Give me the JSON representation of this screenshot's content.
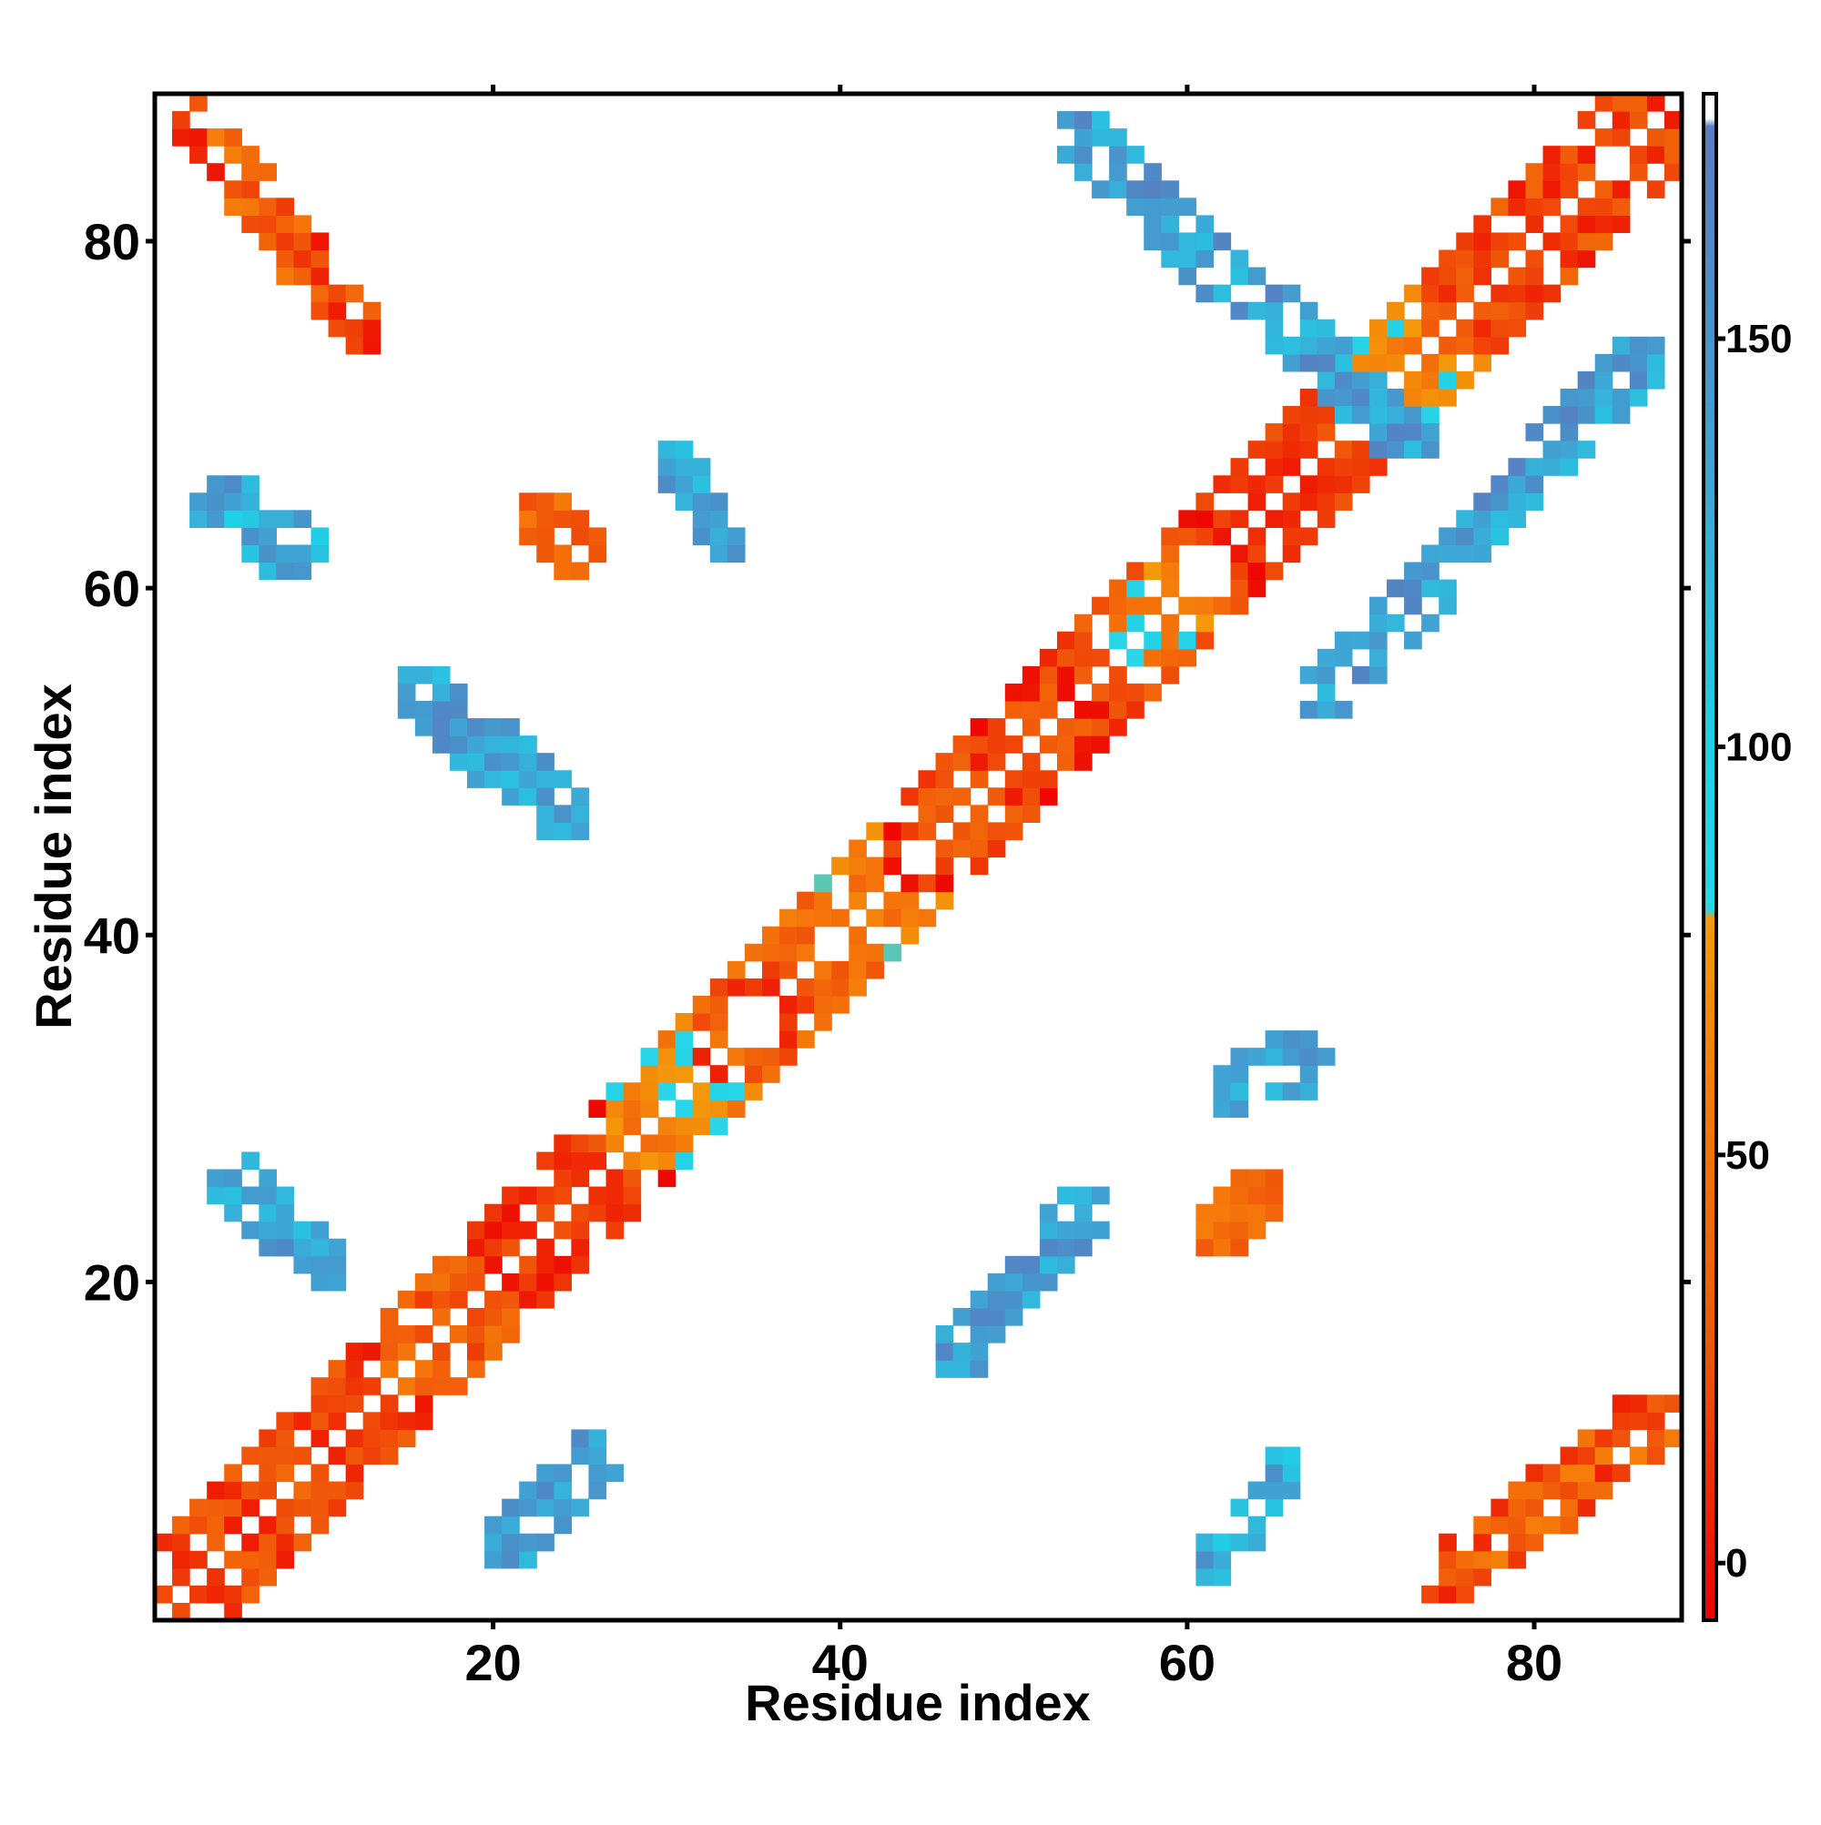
{
  "chart_data": {
    "type": "heatmap",
    "title": "",
    "xlabel": "Residue index",
    "ylabel": "Residue index",
    "xlim": [
      0.5,
      88.5
    ],
    "ylim": [
      0.5,
      88.5
    ],
    "x_ticks": [
      20,
      40,
      60,
      80
    ],
    "y_ticks": [
      20,
      40,
      60,
      80
    ],
    "colorbar": {
      "ticks": [
        0,
        50,
        100,
        150
      ],
      "range": [
        -7,
        180
      ],
      "stops": [
        {
          "value": -7,
          "color": "#ee0000"
        },
        {
          "value": 25,
          "color": "#f0550a"
        },
        {
          "value": 55,
          "color": "#f5780a"
        },
        {
          "value": 79,
          "color": "#f49a0a"
        },
        {
          "value": 80,
          "color": "#2ad6e8"
        },
        {
          "value": 100,
          "color": "#1fd0e6"
        },
        {
          "value": 130,
          "color": "#3da8d6"
        },
        {
          "value": 155,
          "color": "#4a90c8"
        },
        {
          "value": 176,
          "color": "#5a7cc0"
        },
        {
          "value": 177,
          "color": "#ffffff"
        },
        {
          "value": 180,
          "color": "#ffffff"
        }
      ]
    },
    "grid": false,
    "legend": "colorbar-right",
    "diagonal_helix_segments": [
      {
        "from": 1,
        "to": 13,
        "lo": 0,
        "hi": 45
      },
      {
        "from": 14,
        "to": 18,
        "lo": 10,
        "hi": 60
      },
      {
        "from": 19,
        "to": 26,
        "lo": -5,
        "hi": 30
      },
      {
        "from": 27,
        "to": 31,
        "lo": 40,
        "hi": 90
      },
      {
        "from": 32,
        "to": 38,
        "lo": 5,
        "hi": 60
      },
      {
        "from": 39,
        "to": 42,
        "lo": 40,
        "hi": 80
      },
      {
        "from": 43,
        "to": 55,
        "lo": -5,
        "hi": 40
      },
      {
        "from": 56,
        "to": 59,
        "lo": 20,
        "hi": 100
      },
      {
        "from": 60,
        "to": 69,
        "lo": -5,
        "hi": 30
      },
      {
        "from": 70,
        "to": 73,
        "lo": 40,
        "hi": 95
      },
      {
        "from": 74,
        "to": 88,
        "lo": -5,
        "hi": 40
      }
    ],
    "contact_blocks": [
      {
        "x": [
          2,
          13
        ],
        "y": [
          74,
          88
        ],
        "lo": 0,
        "hi": 60
      },
      {
        "x": [
          74,
          88
        ],
        "y": [
          2,
          13
        ],
        "lo": 0,
        "hi": 60
      },
      {
        "x": [
          53,
          74
        ],
        "y": [
          67,
          87
        ],
        "lo": 110,
        "hi": 170
      },
      {
        "x": [
          67,
          87
        ],
        "y": [
          53,
          74
        ],
        "lo": 110,
        "hi": 170
      },
      {
        "x": [
          15,
          25
        ],
        "y": [
          46,
          55
        ],
        "lo": 110,
        "hi": 165
      },
      {
        "x": [
          46,
          55
        ],
        "y": [
          15,
          25
        ],
        "lo": 110,
        "hi": 165
      },
      {
        "x": [
          3,
          10
        ],
        "y": [
          61,
          66
        ],
        "lo": 100,
        "hi": 160
      },
      {
        "x": [
          61,
          66
        ],
        "y": [
          3,
          10
        ],
        "lo": 100,
        "hi": 160
      },
      {
        "x": [
          4,
          11
        ],
        "y": [
          20,
          27
        ],
        "lo": 110,
        "hi": 165
      },
      {
        "x": [
          20,
          27
        ],
        "y": [
          4,
          11
        ],
        "lo": 110,
        "hi": 165
      },
      {
        "x": [
          30,
          34
        ],
        "y": [
          62,
          68
        ],
        "lo": 110,
        "hi": 160
      },
      {
        "x": [
          62,
          68
        ],
        "y": [
          30,
          34
        ],
        "lo": 110,
        "hi": 160
      },
      {
        "x": [
          22,
          26
        ],
        "y": [
          61,
          65
        ],
        "lo": 20,
        "hi": 60
      },
      {
        "x": [
          61,
          65
        ],
        "y": [
          22,
          26
        ],
        "lo": 20,
        "hi": 60
      }
    ]
  }
}
